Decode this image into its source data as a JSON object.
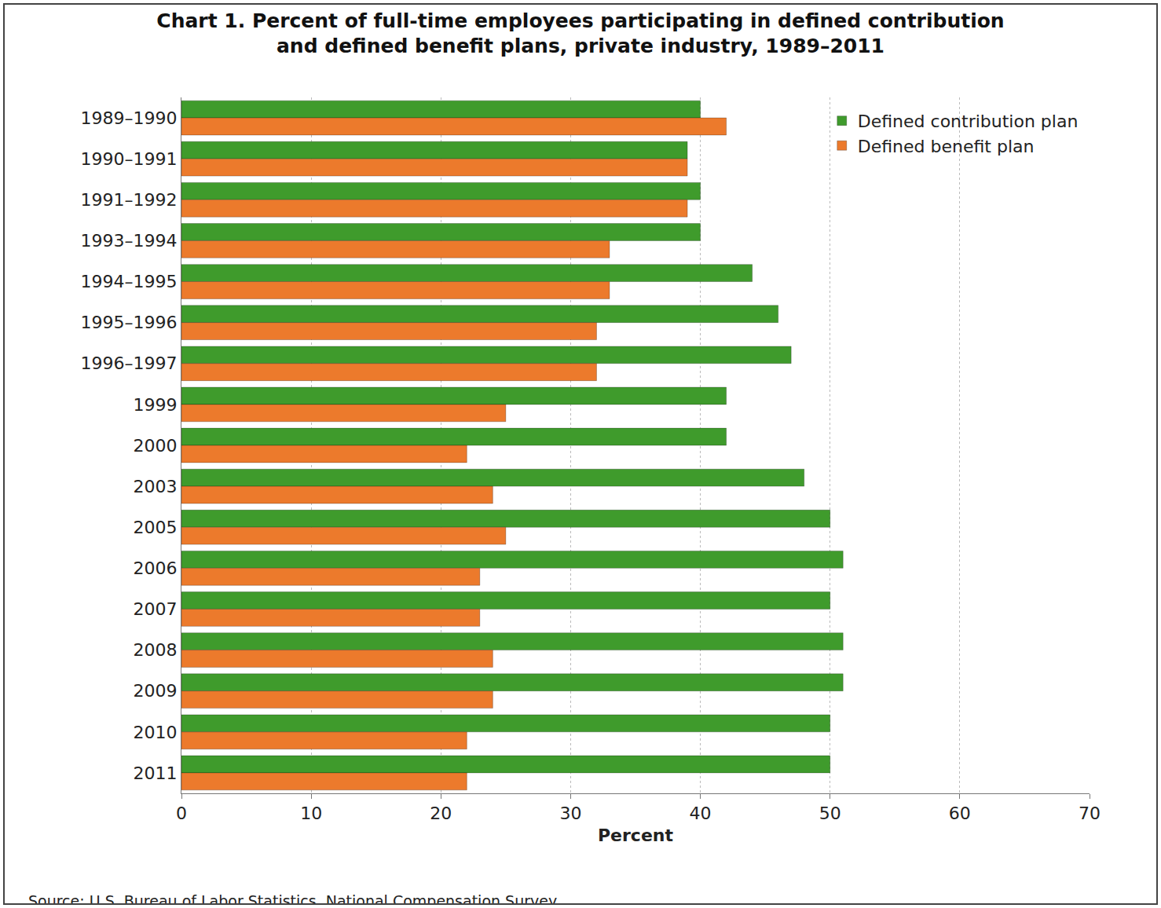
{
  "chart_data": {
    "type": "bar",
    "orientation": "horizontal",
    "title": "Chart 1. Percent of full-time employees participating in defined contribution\nand defined benefit plans, private industry, 1989–2011",
    "x_label": "Percent",
    "annotations": [
      "Source: U.S. Bureau of Labor Statistics, National Compensation Survey"
    ],
    "categories": [
      "1989–1990",
      "1990–1991",
      "1991–1992",
      "1993–1994",
      "1994–1995",
      "1995–1996",
      "1996–1997",
      "1999",
      "2000",
      "2003",
      "2005",
      "2006",
      "2007",
      "2008",
      "2009",
      "2010",
      "2011"
    ],
    "series": [
      {
        "name": "Defined contribution plan",
        "color": "#3f9b2c",
        "values": [
          40,
          39,
          40,
          40,
          44,
          46,
          47,
          42,
          42,
          48,
          50,
          51,
          50,
          51,
          51,
          50,
          50
        ]
      },
      {
        "name": "Defined benefit plan",
        "color": "#ec7a2c",
        "values": [
          42,
          39,
          39,
          33,
          33,
          32,
          32,
          25,
          22,
          24,
          25,
          23,
          23,
          24,
          24,
          22,
          22
        ]
      }
    ],
    "xlim": [
      0,
      70
    ],
    "xticks": [
      0,
      10,
      20,
      30,
      40,
      50,
      60,
      70
    ],
    "grid": true,
    "legend": "top right"
  }
}
